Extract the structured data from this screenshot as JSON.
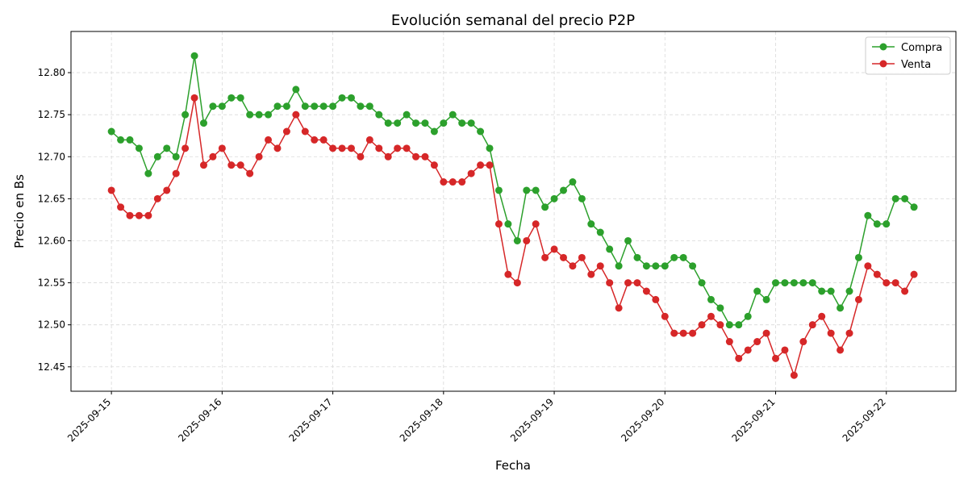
{
  "chart_data": {
    "type": "line",
    "title": "Evolución semanal del precio P2P",
    "xlabel": "Fecha",
    "ylabel": "Precio en Bs",
    "xlim": [
      "2025-09-14 15:14",
      "2025-09-22 15:05"
    ],
    "ylim": [
      12.421,
      12.849
    ],
    "grid": true,
    "legend": "top-right",
    "x_ticks": [
      "2025-09-15",
      "2025-09-16",
      "2025-09-17",
      "2025-09-18",
      "2025-09-19",
      "2025-09-20",
      "2025-09-21",
      "2025-09-22"
    ],
    "y_ticks": [
      "12.45",
      "12.50",
      "12.55",
      "12.60",
      "12.65",
      "12.70",
      "12.75",
      "12.80"
    ],
    "x": [
      "2025-09-15 00:00",
      "2025-09-15 02:00",
      "2025-09-15 04:00",
      "2025-09-15 06:00",
      "2025-09-15 08:00",
      "2025-09-15 10:00",
      "2025-09-15 12:00",
      "2025-09-15 14:00",
      "2025-09-15 16:00",
      "2025-09-15 18:00",
      "2025-09-15 20:00",
      "2025-09-15 22:00",
      "2025-09-16 00:00",
      "2025-09-16 02:00",
      "2025-09-16 04:00",
      "2025-09-16 06:00",
      "2025-09-16 08:00",
      "2025-09-16 10:00",
      "2025-09-16 12:00",
      "2025-09-16 14:00",
      "2025-09-16 16:00",
      "2025-09-16 18:00",
      "2025-09-16 20:00",
      "2025-09-16 22:00",
      "2025-09-17 00:00",
      "2025-09-17 02:00",
      "2025-09-17 04:00",
      "2025-09-17 06:00",
      "2025-09-17 08:00",
      "2025-09-17 10:00",
      "2025-09-17 12:00",
      "2025-09-17 14:00",
      "2025-09-17 16:00",
      "2025-09-17 18:00",
      "2025-09-17 20:00",
      "2025-09-17 22:00",
      "2025-09-18 00:00",
      "2025-09-18 02:00",
      "2025-09-18 04:00",
      "2025-09-18 06:00",
      "2025-09-18 08:00",
      "2025-09-18 10:00",
      "2025-09-18 12:00",
      "2025-09-18 14:00",
      "2025-09-18 16:00",
      "2025-09-18 18:00",
      "2025-09-18 20:00",
      "2025-09-18 22:00",
      "2025-09-19 00:00",
      "2025-09-19 02:00",
      "2025-09-19 04:00",
      "2025-09-19 06:00",
      "2025-09-19 08:00",
      "2025-09-19 10:00",
      "2025-09-19 12:00",
      "2025-09-19 14:00",
      "2025-09-19 16:00",
      "2025-09-19 18:00",
      "2025-09-19 20:00",
      "2025-09-19 22:00",
      "2025-09-20 00:00",
      "2025-09-20 02:00",
      "2025-09-20 04:00",
      "2025-09-20 06:00",
      "2025-09-20 08:00",
      "2025-09-20 10:00",
      "2025-09-20 12:00",
      "2025-09-20 14:00",
      "2025-09-20 16:00",
      "2025-09-20 18:00",
      "2025-09-20 20:00",
      "2025-09-20 22:00",
      "2025-09-21 00:00",
      "2025-09-21 02:00",
      "2025-09-21 04:00",
      "2025-09-21 06:00",
      "2025-09-21 08:00",
      "2025-09-21 10:00",
      "2025-09-21 12:00",
      "2025-09-21 14:00",
      "2025-09-21 16:00",
      "2025-09-21 18:00",
      "2025-09-21 20:00",
      "2025-09-21 22:00",
      "2025-09-22 00:00",
      "2025-09-22 02:00",
      "2025-09-22 04:00",
      "2025-09-22 06:00"
    ],
    "series": [
      {
        "name": "Compra",
        "color": "#2ca02c",
        "values": [
          12.73,
          12.72,
          12.72,
          12.71,
          12.68,
          12.7,
          12.71,
          12.7,
          12.75,
          12.82,
          12.74,
          12.76,
          12.76,
          12.77,
          12.77,
          12.75,
          12.75,
          12.75,
          12.76,
          12.76,
          12.78,
          12.76,
          12.76,
          12.76,
          12.76,
          12.77,
          12.77,
          12.76,
          12.76,
          12.75,
          12.74,
          12.74,
          12.75,
          12.74,
          12.74,
          12.73,
          12.74,
          12.75,
          12.74,
          12.74,
          12.73,
          12.71,
          12.66,
          12.62,
          12.6,
          12.66,
          12.66,
          12.64,
          12.65,
          12.66,
          12.67,
          12.65,
          12.62,
          12.61,
          12.59,
          12.57,
          12.6,
          12.58,
          12.57,
          12.57,
          12.57,
          12.58,
          12.58,
          12.57,
          12.55,
          12.53,
          12.52,
          12.5,
          12.5,
          12.51,
          12.54,
          12.53,
          12.55,
          12.55,
          12.55,
          12.55,
          12.55,
          12.54,
          12.54,
          12.52,
          12.54,
          12.58,
          12.63,
          12.62,
          12.62,
          12.65,
          12.65,
          12.64
        ]
      },
      {
        "name": "Venta",
        "color": "#d62728",
        "values": [
          12.66,
          12.64,
          12.63,
          12.63,
          12.63,
          12.65,
          12.66,
          12.68,
          12.71,
          12.77,
          12.69,
          12.7,
          12.71,
          12.69,
          12.69,
          12.68,
          12.7,
          12.72,
          12.71,
          12.73,
          12.75,
          12.73,
          12.72,
          12.72,
          12.71,
          12.71,
          12.71,
          12.7,
          12.72,
          12.71,
          12.7,
          12.71,
          12.71,
          12.7,
          12.7,
          12.69,
          12.67,
          12.67,
          12.67,
          12.68,
          12.69,
          12.69,
          12.62,
          12.56,
          12.55,
          12.6,
          12.62,
          12.58,
          12.59,
          12.58,
          12.57,
          12.58,
          12.56,
          12.57,
          12.55,
          12.52,
          12.55,
          12.55,
          12.54,
          12.53,
          12.51,
          12.49,
          12.49,
          12.49,
          12.5,
          12.51,
          12.5,
          12.48,
          12.46,
          12.47,
          12.48,
          12.49,
          12.46,
          12.47,
          12.44,
          12.48,
          12.5,
          12.51,
          12.49,
          12.47,
          12.49,
          12.53,
          12.57,
          12.56,
          12.55,
          12.55,
          12.54,
          12.56
        ]
      }
    ]
  }
}
